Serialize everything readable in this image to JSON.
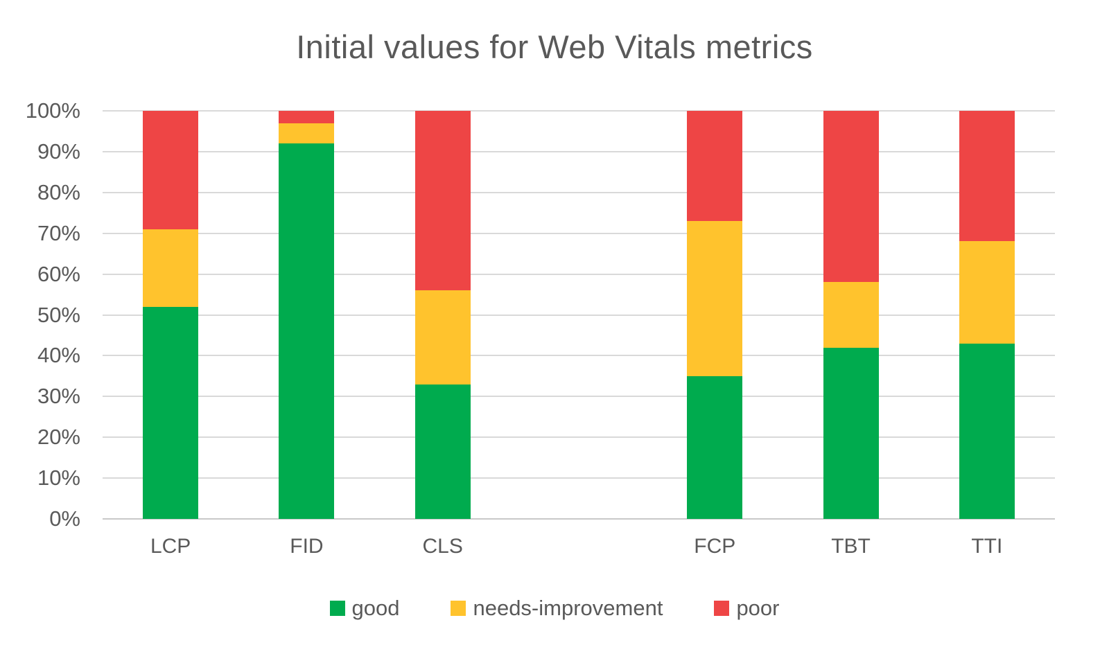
{
  "title": "Initial values for Web Vitals metrics",
  "palette": {
    "good": "#00AB4E",
    "needs_improvement": "#FFC32D",
    "poor": "#EE4545",
    "grid_line": "#D9D9D9",
    "axis_line": "#C9C9C9",
    "text": "#595959",
    "background": "#FFFFFF"
  },
  "chart_data": {
    "type": "bar",
    "stacked": true,
    "percent_stacked": true,
    "title": "Initial values for Web Vitals metrics",
    "categories": [
      "LCP",
      "FID",
      "CLS",
      "",
      "FCP",
      "TBT",
      "TTI"
    ],
    "series": [
      {
        "name": "good",
        "color": "#00AB4E",
        "values": [
          52,
          92,
          33,
          null,
          35,
          42,
          43
        ]
      },
      {
        "name": "needs-improvement",
        "color": "#FFC32D",
        "values": [
          19,
          5,
          23,
          null,
          38,
          16,
          25
        ]
      },
      {
        "name": "poor",
        "color": "#EE4545",
        "values": [
          29,
          3,
          44,
          null,
          27,
          42,
          32
        ]
      }
    ],
    "xlabel": "",
    "ylabel": "",
    "ylim": [
      0,
      100
    ],
    "ytick_step": 10,
    "ytick_labels": [
      "100%",
      "90%",
      "80%",
      "70%",
      "60%",
      "50%",
      "40%",
      "30%",
      "20%",
      "10%",
      "0%"
    ],
    "grid": true,
    "legend_position": "bottom"
  }
}
